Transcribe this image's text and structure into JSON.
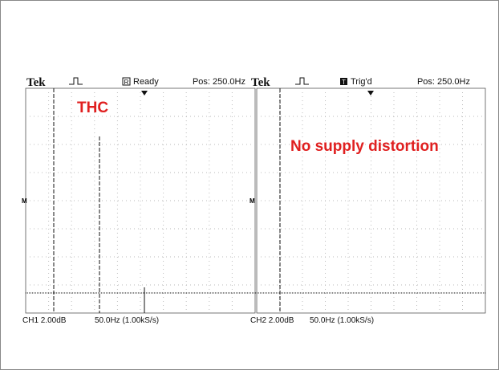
{
  "scopes": [
    {
      "brand": "Tek",
      "status_icon": "R",
      "status": "Ready",
      "position": "Pos: 250.0Hz",
      "annotation": "THC",
      "channel": "CH1 2.00dB",
      "timebase": "50.0Hz (1.00kS/s)"
    },
    {
      "brand": "Tek",
      "status_icon": "T",
      "status": "Trig'd",
      "position": "Pos: 250.0Hz",
      "annotation": "No supply distortion",
      "channel": "CH2 2.00dB",
      "timebase": "50.0Hz (1.00kS/s)"
    }
  ]
}
